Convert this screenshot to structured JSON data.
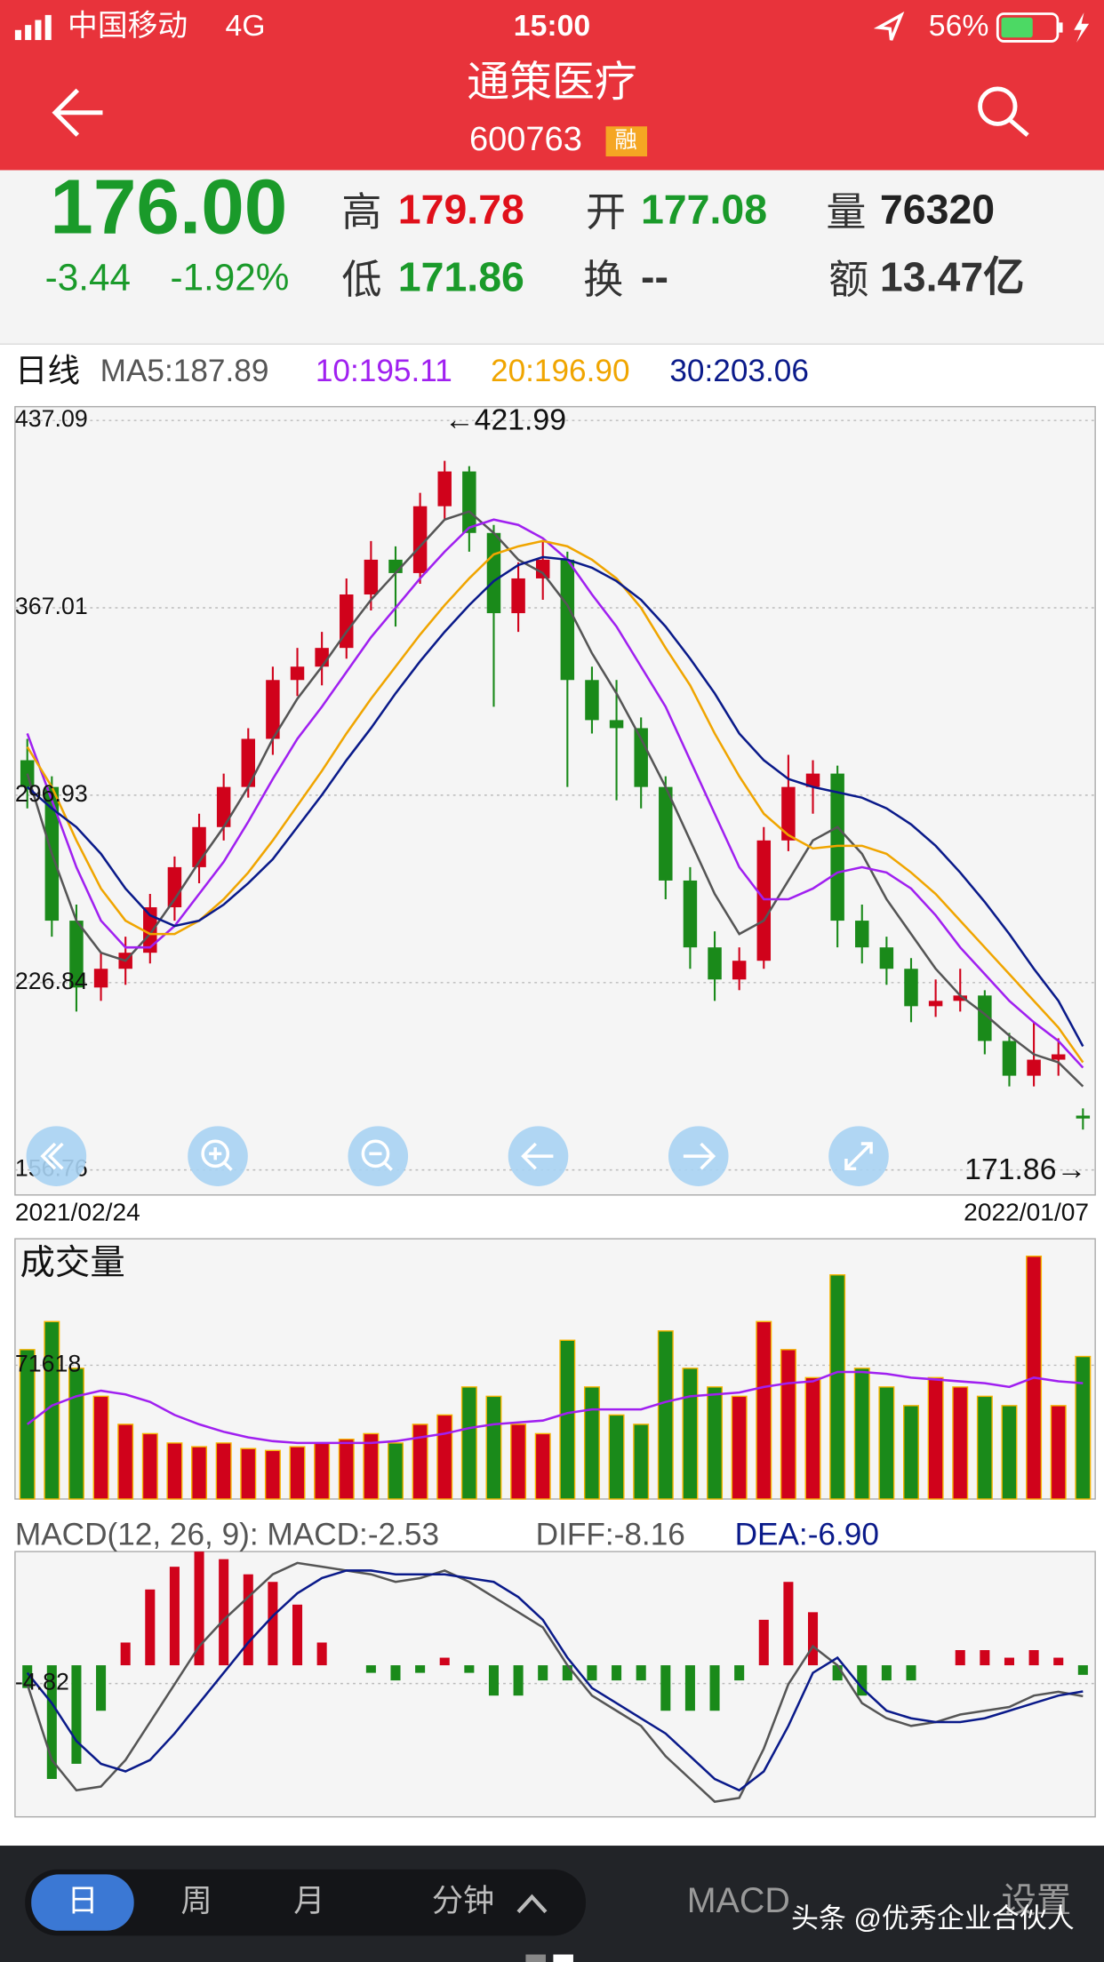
{
  "status_bar": {
    "carrier": "中国移动",
    "network": "4G",
    "time": "15:00",
    "battery": "56%"
  },
  "header": {
    "title": "通策医疗",
    "code": "600763",
    "badge": "融"
  },
  "quote": {
    "price": "176.00",
    "change": "-3.44",
    "change_pct": "-1.92%",
    "stats": [
      {
        "label": "高",
        "value": "179.78"
      },
      {
        "label": "开",
        "value": "177.08"
      },
      {
        "label": "量",
        "value": "76320"
      },
      {
        "label": "低",
        "value": "171.86"
      },
      {
        "label": "换",
        "value": "--"
      },
      {
        "label": "额",
        "value": "13.47亿"
      }
    ]
  },
  "period_label": "日线",
  "chart_data": [
    {
      "type": "candlestick",
      "up_color": "#d0021b",
      "down_color": "#1a8a1a",
      "grid": true,
      "categories": [
        "2021/02/24",
        null,
        null,
        null,
        null,
        null,
        null,
        null,
        null,
        null,
        null,
        null,
        null,
        null,
        null,
        null,
        null,
        null,
        null,
        null,
        null,
        null,
        null,
        null,
        null,
        null,
        null,
        null,
        null,
        null,
        null,
        null,
        null,
        null,
        null,
        null,
        null,
        null,
        null,
        null,
        null,
        null,
        null,
        "2022/01/07"
      ],
      "open": [
        310,
        300,
        250,
        225,
        232,
        238,
        255,
        270,
        285,
        300,
        318,
        340,
        345,
        352,
        372,
        385,
        380,
        405,
        418,
        395,
        365,
        378,
        385,
        340,
        325,
        322,
        300,
        265,
        240,
        228,
        235,
        280,
        300,
        305,
        250,
        240,
        232,
        218,
        220,
        222,
        205,
        192,
        198,
        177.08
      ],
      "high": [
        318,
        304,
        256,
        238,
        244,
        260,
        274,
        290,
        305,
        322,
        345,
        352,
        358,
        378,
        392,
        390,
        410,
        421.99,
        420,
        398,
        384,
        392,
        388,
        345,
        340,
        326,
        304,
        270,
        246,
        240,
        285,
        312,
        310,
        308,
        256,
        244,
        236,
        228,
        232,
        224,
        208,
        212,
        206,
        179.78
      ],
      "low": [
        292,
        244,
        216,
        220,
        226,
        234,
        250,
        264,
        280,
        296,
        312,
        334,
        338,
        348,
        366,
        360,
        376,
        400,
        388,
        330,
        358,
        370,
        300,
        320,
        295,
        292,
        258,
        232,
        220,
        224,
        232,
        276,
        290,
        240,
        234,
        226,
        212,
        214,
        216,
        200,
        188,
        188,
        192,
        171.86
      ],
      "close": [
        300,
        250,
        225,
        232,
        238,
        255,
        270,
        285,
        300,
        318,
        340,
        345,
        352,
        372,
        385,
        380,
        405,
        418,
        395,
        365,
        378,
        385,
        340,
        325,
        322,
        300,
        265,
        240,
        228,
        235,
        280,
        300,
        305,
        250,
        240,
        232,
        218,
        220,
        222,
        205,
        192,
        198,
        200,
        176
      ],
      "series": [
        {
          "name": "MA5:187.89",
          "color": "#555555",
          "values": [
            305,
            275,
            250,
            238,
            235,
            245,
            258,
            272,
            285,
            300,
            318,
            333,
            345,
            358,
            370,
            380,
            390,
            400,
            403,
            395,
            385,
            380,
            368,
            350,
            335,
            318,
            300,
            280,
            260,
            245,
            250,
            265,
            280,
            285,
            275,
            258,
            245,
            232,
            222,
            215,
            207,
            200,
            197,
            188
          ]
        },
        {
          "name": "10:195.11",
          "color": "#a020f0",
          "values": [
            320,
            295,
            270,
            250,
            240,
            240,
            248,
            260,
            272,
            287,
            303,
            318,
            330,
            343,
            356,
            367,
            378,
            388,
            397,
            400,
            398,
            393,
            385,
            372,
            360,
            345,
            330,
            310,
            290,
            270,
            258,
            258,
            262,
            268,
            270,
            268,
            262,
            252,
            240,
            230,
            220,
            212,
            205,
            195
          ]
        },
        {
          "name": "20:196.90",
          "color": "#f0a500",
          "values": [
            315,
            300,
            280,
            262,
            250,
            245,
            245,
            250,
            258,
            268,
            280,
            293,
            306,
            320,
            333,
            345,
            357,
            368,
            378,
            387,
            390,
            392,
            390,
            385,
            378,
            367,
            352,
            338,
            320,
            304,
            290,
            282,
            277,
            278,
            278,
            275,
            268,
            260,
            250,
            240,
            230,
            220,
            210,
            197
          ]
        },
        {
          "name": "30:203.06",
          "color": "#0a1a8a",
          "values": [
            300,
            292,
            285,
            275,
            262,
            252,
            248,
            250,
            256,
            264,
            273,
            285,
            297,
            310,
            322,
            335,
            347,
            358,
            368,
            377,
            383,
            386,
            385,
            382,
            377,
            370,
            360,
            348,
            335,
            320,
            310,
            303,
            300,
            298,
            296,
            292,
            286,
            278,
            268,
            257,
            245,
            232,
            220,
            203
          ]
        }
      ],
      "ylim": [
        156.76,
        437.09
      ],
      "yticks": [
        437.09,
        367.01,
        296.93,
        226.84,
        156.76
      ],
      "annotations": [
        "←421.99",
        "171.86→"
      ]
    },
    {
      "type": "bar",
      "title": "成交量",
      "grid": true,
      "values": [
        80000,
        95000,
        70000,
        55000,
        40000,
        35000,
        30000,
        28000,
        30000,
        27000,
        26000,
        28000,
        30000,
        32000,
        35000,
        30000,
        40000,
        45000,
        60000,
        55000,
        40000,
        35000,
        85000,
        60000,
        45000,
        40000,
        90000,
        70000,
        60000,
        55000,
        95000,
        80000,
        65000,
        120000,
        70000,
        60000,
        50000,
        65000,
        60000,
        55000,
        50000,
        130000,
        50000,
        76320
      ],
      "series": [
        {
          "color": "#a020f0",
          "values": [
            40000,
            50000,
            55000,
            58000,
            56000,
            52000,
            45000,
            40000,
            36000,
            33000,
            31000,
            30000,
            30000,
            30000,
            30000,
            31000,
            33000,
            35000,
            38000,
            40000,
            41000,
            42000,
            46000,
            48000,
            48000,
            48000,
            52000,
            55000,
            56000,
            57000,
            60000,
            62000,
            63000,
            68000,
            68000,
            67000,
            65000,
            64000,
            63000,
            62000,
            60000,
            65000,
            63000,
            62000
          ]
        }
      ],
      "ylim": [
        0,
        138000
      ],
      "yticks": [
        71618
      ]
    },
    {
      "type": "macd",
      "grid": true,
      "up_color": "#d0021b",
      "down_color": "#1a8a1a",
      "title": "MACD(12, 26, 9): MACD:-2.53",
      "values": [
        -6,
        -30,
        -26,
        -12,
        6,
        20,
        26,
        30,
        28,
        24,
        22,
        16,
        6,
        0,
        -2,
        -4,
        -2,
        2,
        -2,
        -8,
        -8,
        -4,
        -4,
        -4,
        -4,
        -4,
        -12,
        -12,
        -12,
        -4,
        12,
        22,
        14,
        -4,
        -8,
        -4,
        -4,
        0,
        4,
        4,
        2,
        4,
        2,
        -2.53
      ],
      "series": [
        {
          "name": "DIFF:-8.16",
          "color": "#555555",
          "values": [
            -5,
            -25,
            -33,
            -32,
            -25,
            -15,
            -5,
            5,
            12,
            18,
            24,
            27,
            26,
            25,
            24,
            22,
            23,
            25,
            22,
            18,
            14,
            10,
            0,
            -8,
            -12,
            -16,
            -24,
            -30,
            -36,
            -35,
            -22,
            -5,
            5,
            0,
            -10,
            -14,
            -16,
            -15,
            -13,
            -12,
            -11,
            -8,
            -7,
            -8.16
          ]
        },
        {
          "name": "DEA:-6.90",
          "color": "#0a1a8a",
          "values": [
            -2,
            -10,
            -20,
            -26,
            -28,
            -25,
            -18,
            -10,
            -2,
            6,
            13,
            19,
            23,
            25,
            25,
            24,
            24,
            24,
            23,
            22,
            18,
            12,
            2,
            -6,
            -10,
            -14,
            -18,
            -24,
            -30,
            -33,
            -28,
            -16,
            -2,
            2,
            -6,
            -12,
            -14,
            -15,
            -15,
            -14,
            -12,
            -10,
            -8,
            -6.9
          ]
        }
      ],
      "ylim": [
        -40,
        30
      ],
      "yticks": [
        -4.82
      ]
    }
  ],
  "bottom_bar": {
    "tabs": [
      "日",
      "周",
      "月",
      "分钟"
    ],
    "indicator": "MACD",
    "settings": "设置"
  },
  "watermark": "头条 @优秀企业合伙人"
}
